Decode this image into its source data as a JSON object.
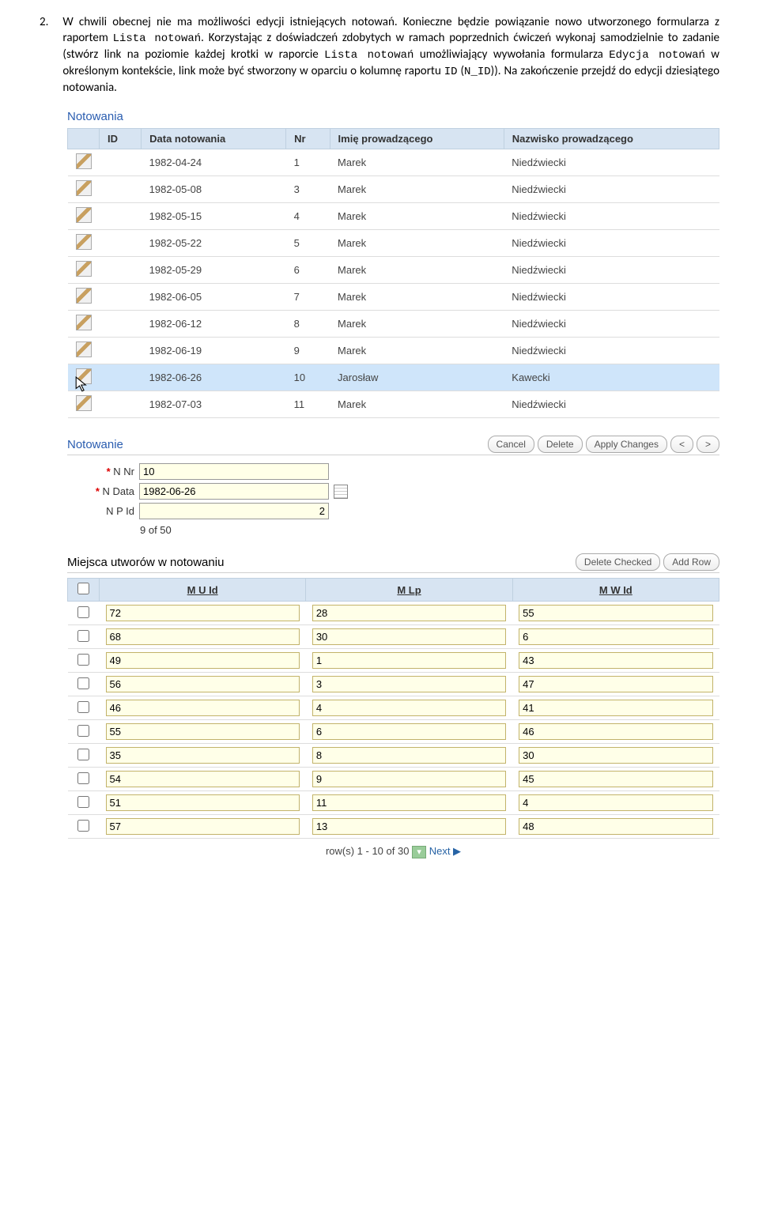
{
  "instruction": {
    "number": "2.",
    "text_a": "W chwili obecnej nie ma możliwości edycji istniejących notowań. Konieczne będzie powiązanie nowo utworzonego formularza z raportem ",
    "mono_a": "Lista notowań",
    "text_b": ". Korzystając z doświadczeń zdobytych w ramach poprzednich ćwiczeń wykonaj samodzielnie to zadanie (stwórz link na poziomie każdej krotki w raporcie ",
    "mono_b": "Lista notowań",
    "text_c": " umożliwiający wywołania formularza ",
    "mono_c": "Edycja notowań",
    "text_d": " w określonym kontekście, link może być stworzony w oparciu o kolumnę raportu ",
    "mono_d": "ID",
    "text_e": " (",
    "mono_e": "N_ID",
    "text_f": ")). Na zakończenie przejdź do edycji dziesiątego notowania."
  },
  "report": {
    "title": "Notowania",
    "columns": [
      "",
      "ID",
      "Data notowania",
      "Nr",
      "Imię prowadzącego",
      "Nazwisko prowadzącego"
    ],
    "rows": [
      {
        "date": "1982-04-24",
        "nr": "1",
        "fn": "Marek",
        "ln": "Niedźwiecki",
        "hl": false
      },
      {
        "date": "1982-05-08",
        "nr": "3",
        "fn": "Marek",
        "ln": "Niedźwiecki",
        "hl": false
      },
      {
        "date": "1982-05-15",
        "nr": "4",
        "fn": "Marek",
        "ln": "Niedźwiecki",
        "hl": false
      },
      {
        "date": "1982-05-22",
        "nr": "5",
        "fn": "Marek",
        "ln": "Niedźwiecki",
        "hl": false
      },
      {
        "date": "1982-05-29",
        "nr": "6",
        "fn": "Marek",
        "ln": "Niedźwiecki",
        "hl": false
      },
      {
        "date": "1982-06-05",
        "nr": "7",
        "fn": "Marek",
        "ln": "Niedźwiecki",
        "hl": false
      },
      {
        "date": "1982-06-12",
        "nr": "8",
        "fn": "Marek",
        "ln": "Niedźwiecki",
        "hl": false
      },
      {
        "date": "1982-06-19",
        "nr": "9",
        "fn": "Marek",
        "ln": "Niedźwiecki",
        "hl": false
      },
      {
        "date": "1982-06-26",
        "nr": "10",
        "fn": "Jarosław",
        "ln": "Kawecki",
        "hl": true
      },
      {
        "date": "1982-07-03",
        "nr": "11",
        "fn": "Marek",
        "ln": "Niedźwiecki",
        "hl": false
      }
    ]
  },
  "form": {
    "title": "Notowanie",
    "buttons": {
      "cancel": "Cancel",
      "delete": "Delete",
      "apply": "Apply Changes",
      "prev": "<",
      "next": ">"
    },
    "fields": {
      "nnr": {
        "label": "N Nr",
        "value": "10",
        "required": true
      },
      "ndata": {
        "label": "N Data",
        "value": "1982-06-26",
        "required": true
      },
      "npid": {
        "label": "N P Id",
        "value": "2",
        "required": false
      }
    },
    "pager": "9 of 50"
  },
  "tabform": {
    "title": "Miejsca utworów w notowaniu",
    "buttons": {
      "delete_checked": "Delete Checked",
      "add_row": "Add Row"
    },
    "columns": [
      "M U Id",
      "M Lp",
      "M W Id"
    ],
    "rows": [
      {
        "c1": "72",
        "c2": "28",
        "c3": "55"
      },
      {
        "c1": "68",
        "c2": "30",
        "c3": "6"
      },
      {
        "c1": "49",
        "c2": "1",
        "c3": "43"
      },
      {
        "c1": "56",
        "c2": "3",
        "c3": "47"
      },
      {
        "c1": "46",
        "c2": "4",
        "c3": "41"
      },
      {
        "c1": "55",
        "c2": "6",
        "c3": "46"
      },
      {
        "c1": "35",
        "c2": "8",
        "c3": "30"
      },
      {
        "c1": "54",
        "c2": "9",
        "c3": "45"
      },
      {
        "c1": "51",
        "c2": "11",
        "c3": "4"
      },
      {
        "c1": "57",
        "c2": "13",
        "c3": "48"
      }
    ],
    "pagination": {
      "text": "row(s) 1 - 10 of 30",
      "next": "Next ▶"
    }
  },
  "colors": {
    "link": "#2a5db0",
    "header_bg": "#d7e4f2",
    "header_border": "#bfd0e0",
    "row_hl": "#cfe5fa",
    "input_bg": "#ffffe8",
    "input_border": "#c2b36a"
  }
}
